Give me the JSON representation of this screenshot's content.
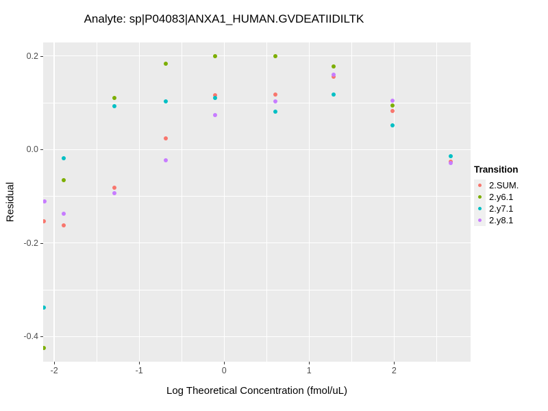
{
  "title": "Analyte: sp|P04083|ANXA1_HUMAN.GVDEATIIDILTK",
  "colors": {
    "panel_background": "#EBEBEB",
    "gridline": "#FFFFFF",
    "tick_mark": "#333333",
    "tick_label": "#4D4D4D",
    "legend_key_background": "#F0F0F0"
  },
  "chart_data": {
    "type": "scatter",
    "title": "Analyte: sp|P04083|ANXA1_HUMAN.GVDEATIIDILTK",
    "xlabel": "Log Theoretical Concentration (fmol/uL)",
    "ylabel": "Residual",
    "xlim": [
      -2.13,
      2.9
    ],
    "ylim": [
      -0.454,
      0.229
    ],
    "x_major_ticks": [
      -2,
      -1,
      0,
      1,
      2
    ],
    "x_tick_labels": [
      "-2",
      "-1",
      "0",
      "1",
      "2"
    ],
    "x_minor_gridlines": [
      -1.5,
      -0.5,
      0.5,
      1.5,
      2.5
    ],
    "y_major_ticks": [
      0.2,
      0.0,
      -0.2,
      -0.4
    ],
    "y_tick_labels": [
      "0.2",
      "0.0",
      "-0.2",
      "-0.4"
    ],
    "y_minor_gridlines": [
      0.1,
      -0.1,
      -0.3
    ],
    "grid": "white major and minor gridlines on gray panel",
    "legend_title": "Transition",
    "legend_position": "right",
    "marker": "filled circle, ~6px",
    "series": [
      {
        "name": "2.SUM.",
        "color": "#F8766D",
        "points": [
          [
            -2.12,
            -0.153
          ],
          [
            -1.89,
            -0.163
          ],
          [
            -1.29,
            -0.081
          ],
          [
            -0.69,
            0.024
          ],
          [
            -0.105,
            0.116
          ],
          [
            0.6,
            0.118
          ],
          [
            1.29,
            0.155
          ],
          [
            1.98,
            0.083
          ],
          [
            2.67,
            -0.026
          ]
        ]
      },
      {
        "name": "2.y6.1",
        "color": "#7CAE00",
        "points": [
          [
            -2.12,
            -0.424
          ],
          [
            -1.89,
            -0.066
          ],
          [
            -1.29,
            0.111
          ],
          [
            -0.69,
            0.184
          ],
          [
            -0.105,
            0.2
          ],
          [
            0.6,
            0.199
          ],
          [
            1.29,
            0.177
          ],
          [
            1.98,
            0.094
          ]
        ]
      },
      {
        "name": "2.y7.1",
        "color": "#00BFC4",
        "points": [
          [
            -2.12,
            -0.338
          ],
          [
            -1.89,
            -0.018
          ],
          [
            -1.29,
            0.093
          ],
          [
            -0.69,
            0.103
          ],
          [
            -0.105,
            0.111
          ],
          [
            0.6,
            0.081
          ],
          [
            1.29,
            0.118
          ],
          [
            1.98,
            0.052
          ],
          [
            2.67,
            -0.015
          ]
        ]
      },
      {
        "name": "2.y8.1",
        "color": "#C77CFF",
        "points": [
          [
            -2.11,
            -0.111
          ],
          [
            -1.89,
            -0.138
          ],
          [
            -1.29,
            -0.093
          ],
          [
            -0.69,
            -0.023
          ],
          [
            -0.105,
            0.074
          ],
          [
            0.6,
            0.103
          ],
          [
            1.29,
            0.16
          ],
          [
            1.98,
            0.105
          ],
          [
            2.67,
            -0.029
          ]
        ]
      }
    ]
  }
}
